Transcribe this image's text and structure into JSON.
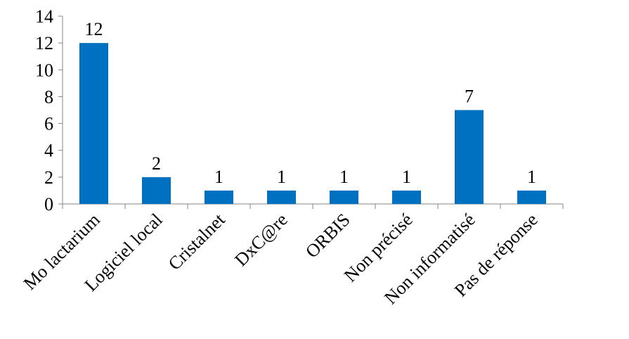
{
  "chart_data": {
    "type": "bar",
    "title": "",
    "xlabel": "",
    "ylabel": "",
    "categories": [
      "Mo lactarium",
      "Logiciel local",
      "Cristalnet",
      "DxC@re",
      "ORBIS",
      "Non précisé",
      "Non informatisé",
      "Pas de réponse"
    ],
    "values": [
      12,
      2,
      1,
      1,
      1,
      1,
      7,
      1
    ],
    "data_labels": [
      "12",
      "2",
      "1",
      "1",
      "1",
      "1",
      "7",
      "1"
    ],
    "ylim": [
      0,
      14
    ],
    "yticks": [
      0,
      2,
      4,
      6,
      8,
      10,
      12,
      14
    ],
    "ytick_labels": [
      "0",
      "2",
      "4",
      "6",
      "8",
      "10",
      "12",
      "14"
    ],
    "grid": false,
    "legend": "none",
    "bar_color": "#0070C0",
    "axis_color": "#868686"
  }
}
